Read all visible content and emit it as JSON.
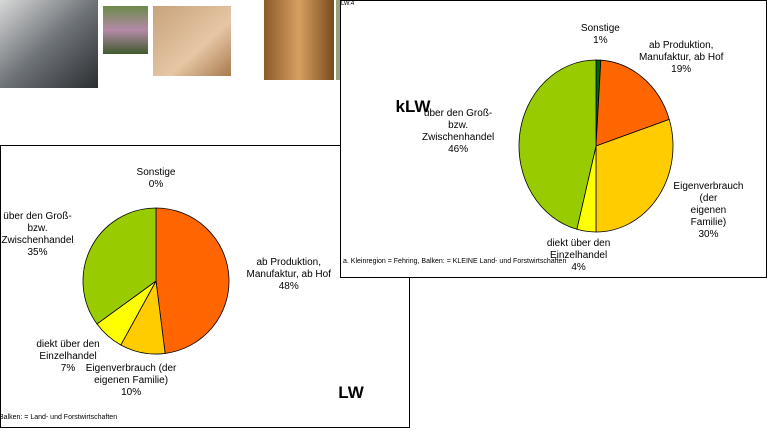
{
  "chart_data": [
    {
      "type": "pie",
      "title": "LW",
      "categories": [
        "Sonstige",
        "ab Produktion,\nManufaktur, ab Hof",
        "Eigenverbrauch (der\neigenen Familie)",
        "diekt über den\nEinzelhandel",
        "über den Groß-\nbzw.\nZwischenhandel"
      ],
      "values": [
        0,
        48,
        10,
        7,
        35
      ],
      "value_labels": [
        "0%",
        "48%",
        "10%",
        "7%",
        "35%"
      ],
      "colors": [
        "#006600",
        "#ff6600",
        "#ffcc00",
        "#ffff00",
        "#99cc00"
      ],
      "note": "Balken: = Land- und Forstwirtschaften"
    },
    {
      "type": "pie",
      "title": "kLW",
      "code": "LW.4",
      "categories": [
        "Sonstige",
        "ab Produktion,\nManufaktur, ab Hof",
        "Eigenverbrauch (der\neigenen Familie)",
        "diekt über den\nEinzelhandel",
        "über den Groß-\nbzw.\nZwischenhandel"
      ],
      "values": [
        1,
        19,
        30,
        4,
        46
      ],
      "value_labels": [
        "1%",
        "19%",
        "30%",
        "4%",
        "46%"
      ],
      "colors": [
        "#006600",
        "#ff6600",
        "#ffcc00",
        "#ffff00",
        "#99cc00"
      ],
      "note": "a. Kleinregion = Fehring, Balken: = KLEINE Land- und Forstwirtschaften"
    }
  ]
}
